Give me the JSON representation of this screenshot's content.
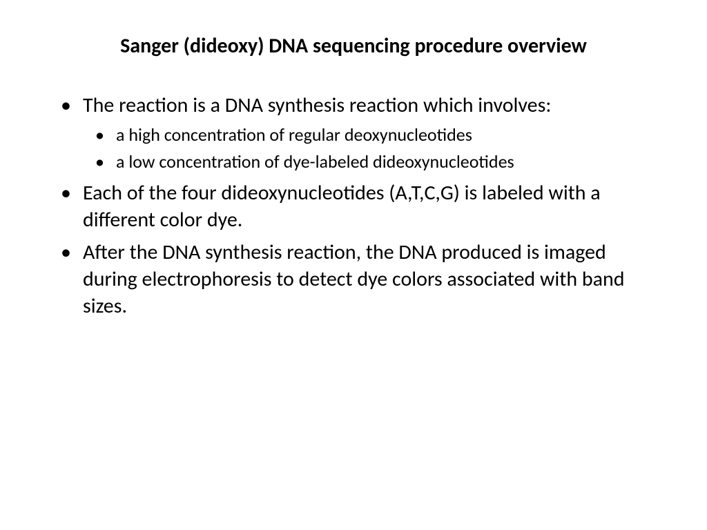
{
  "title": "Sanger (dideoxy) DNA sequencing procedure overview",
  "bullets": {
    "b1": "The reaction is a DNA synthesis reaction which involves:",
    "b1_sub1": "a high concentration of regular deoxynucleotides",
    "b1_sub2": "a low concentration of dye-labeled dideoxynucleotides",
    "b2": "Each of the four dideoxynucleotides (A,T,C,G) is labeled with a different color dye.",
    "b3": "After the DNA synthesis reaction, the DNA produced is imaged during electrophoresis to detect dye colors associated with band sizes."
  },
  "styling": {
    "background_color": "#ffffff",
    "text_color": "#000000",
    "title_fontsize": 30,
    "title_weight": "bold",
    "body_fontsize": 30,
    "sub_fontsize": 26,
    "font_family": "Calibri"
  }
}
